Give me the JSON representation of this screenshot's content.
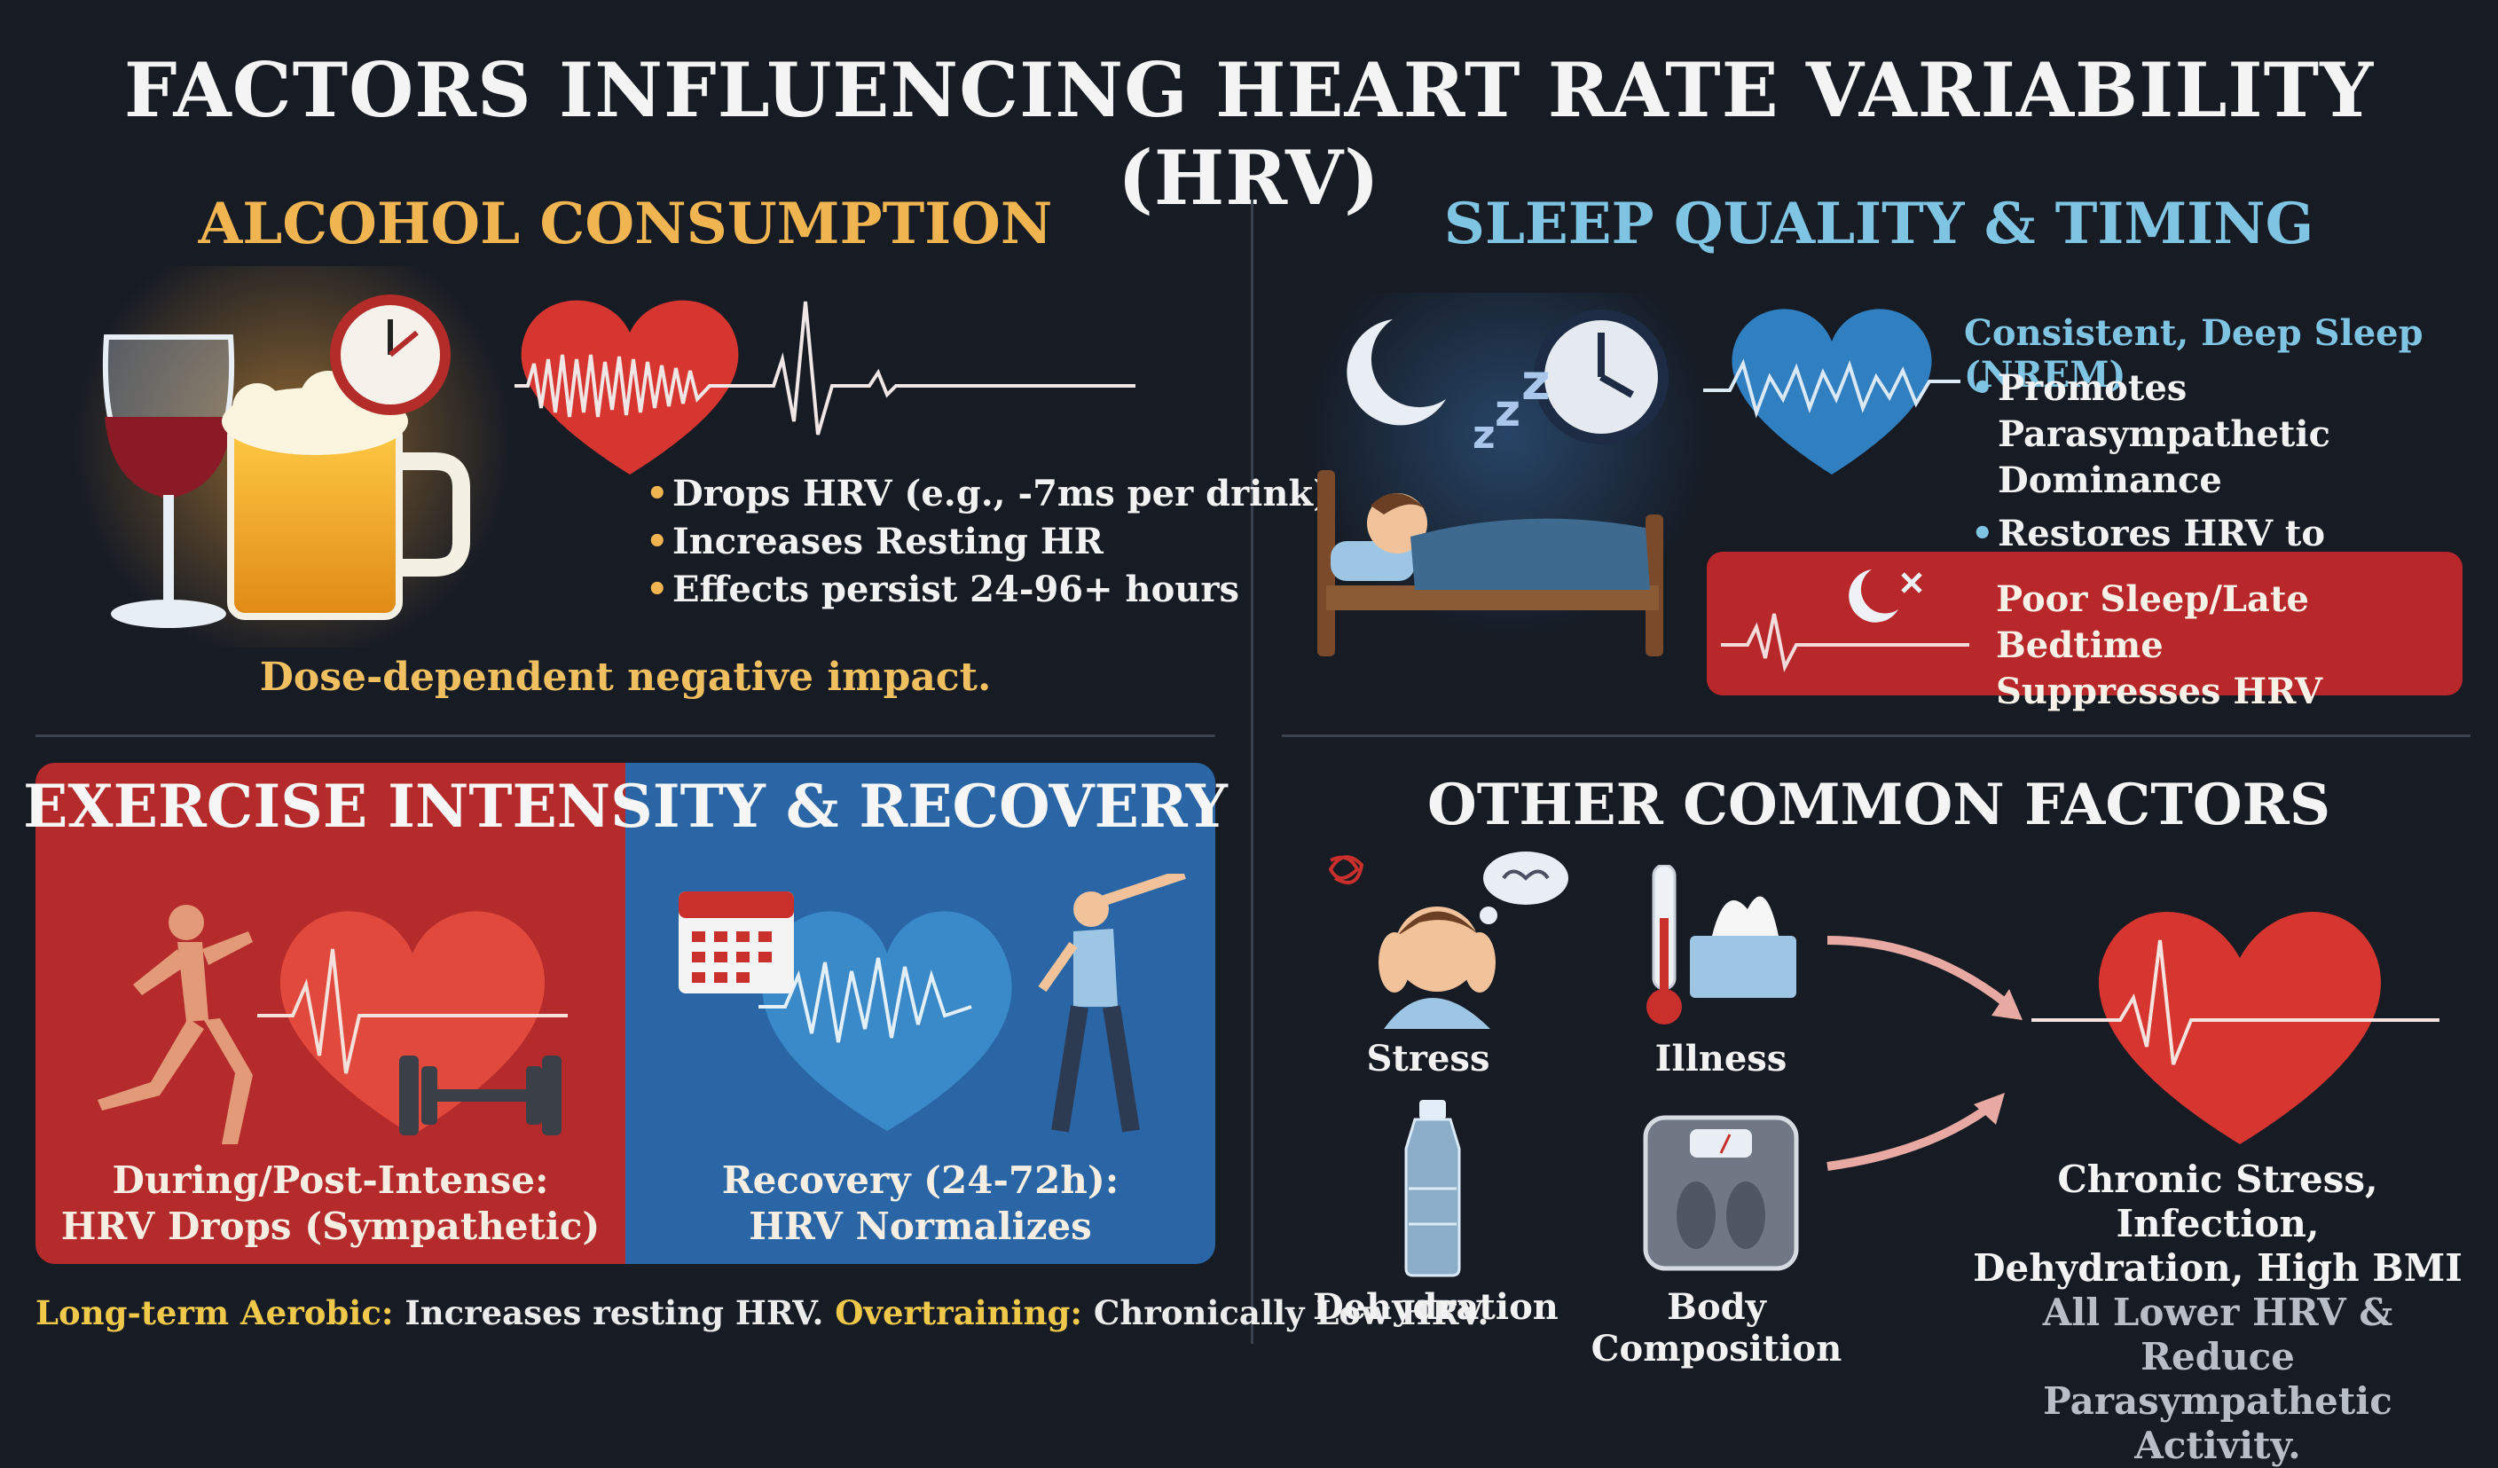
{
  "title": "FACTORS INFLUENCING HEART RATE VARIABILITY (HRV)",
  "alcohol": {
    "title": "ALCOHOL CONSUMPTION",
    "bullets": [
      "Drops HRV (e.g., -7ms per drink)",
      "Increases Resting HR",
      "Effects persist 24-96+ hours"
    ],
    "summary": "Dose-dependent negative impact."
  },
  "sleep": {
    "title": "SLEEP QUALITY & TIMING",
    "heading": "Consistent, Deep Sleep (NREM)",
    "bullets": [
      "Promotes Parasympathetic Dominance",
      "Restores HRV to Baseline"
    ],
    "poor_line1": "Poor Sleep/Late Bedtime",
    "poor_line2": "Suppresses HRV"
  },
  "exercise": {
    "title": "EXERCISE INTENSITY & RECOVERY",
    "left_line1": "During/Post-Intense:",
    "left_line2": "HRV Drops (Sympathetic)",
    "right_line1": "Recovery (24-72h):",
    "right_line2": "HRV Normalizes",
    "footer_label1": "Long-term Aerobic:",
    "footer_text1": " Increases resting HRV. ",
    "footer_label2": "Overtraining:",
    "footer_text2": " Chronically Low HRV."
  },
  "other": {
    "title": "OTHER COMMON FACTORS",
    "labels": [
      "Stress",
      "Illness",
      "Dehydration",
      "Body Composition"
    ],
    "summary_line1": "Chronic Stress, Infection,",
    "summary_line2": "Dehydration, High BMI",
    "summary_line3": "All Lower HRV & Reduce",
    "summary_line4": "Parasympathetic Activity."
  },
  "colors": {
    "background": "#161b24",
    "alcohol_accent": "#f0b550",
    "sleep_accent": "#7fc4e2",
    "red_panel": "#b52a2b",
    "blue_panel": "#2a66a6",
    "heart_red": "#d83a34",
    "heart_blue": "#2f7fc1"
  },
  "icons": [
    "wine-glass-icon",
    "beer-mug-icon",
    "clock-icon",
    "red-heart-icon",
    "moon-icon",
    "sleeping-person-icon",
    "blue-heart-icon",
    "moon-cross-icon",
    "runner-icon",
    "dumbbell-icon",
    "calendar-icon",
    "stretching-person-icon",
    "stressed-person-icon",
    "thermometer-icon",
    "tissue-box-icon",
    "water-bottle-icon",
    "scale-icon",
    "arrow-icon"
  ]
}
